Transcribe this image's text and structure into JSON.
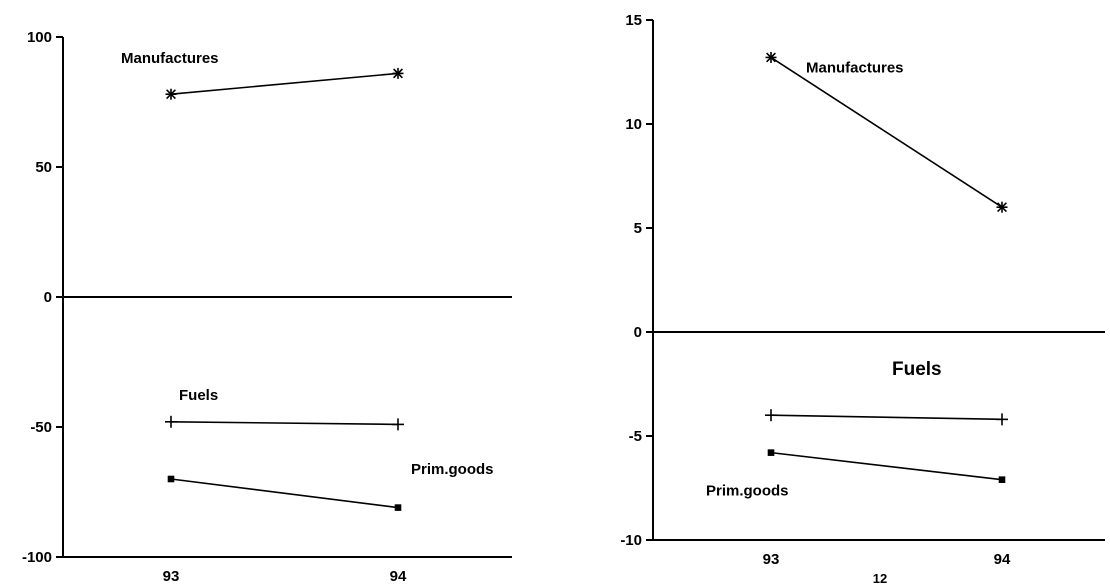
{
  "chart_data": [
    {
      "type": "line",
      "title": "",
      "xlabel": "",
      "ylabel": "",
      "categories": [
        "93",
        "94"
      ],
      "ylim": [
        -100,
        100
      ],
      "yticks": [
        "100",
        "50",
        "0",
        "-50",
        "-100"
      ],
      "grid": false,
      "legend": "none",
      "series": [
        {
          "name": "Manufactures",
          "values": [
            78,
            86
          ],
          "marker": "asterisk"
        },
        {
          "name": "Fuels",
          "values": [
            -48,
            -49
          ],
          "marker": "plus"
        },
        {
          "name": "Prim.goods",
          "values": [
            -70,
            -81
          ],
          "marker": "square"
        }
      ]
    },
    {
      "type": "line",
      "title": "",
      "xlabel": "",
      "ylabel": "",
      "categories": [
        "93",
        "94"
      ],
      "ylim": [
        -10,
        15
      ],
      "yticks": [
        "15",
        "10",
        "5",
        "0",
        "-5",
        "-10"
      ],
      "grid": false,
      "legend": "none",
      "series": [
        {
          "name": "Manufactures",
          "values": [
            13.2,
            6.0
          ],
          "marker": "asterisk"
        },
        {
          "name": "Fuels",
          "values": [
            -4.0,
            -4.2
          ],
          "marker": "plus"
        },
        {
          "name": "Prim.goods",
          "values": [
            -5.8,
            -7.1
          ],
          "marker": "square"
        }
      ]
    }
  ],
  "footnote": "12"
}
